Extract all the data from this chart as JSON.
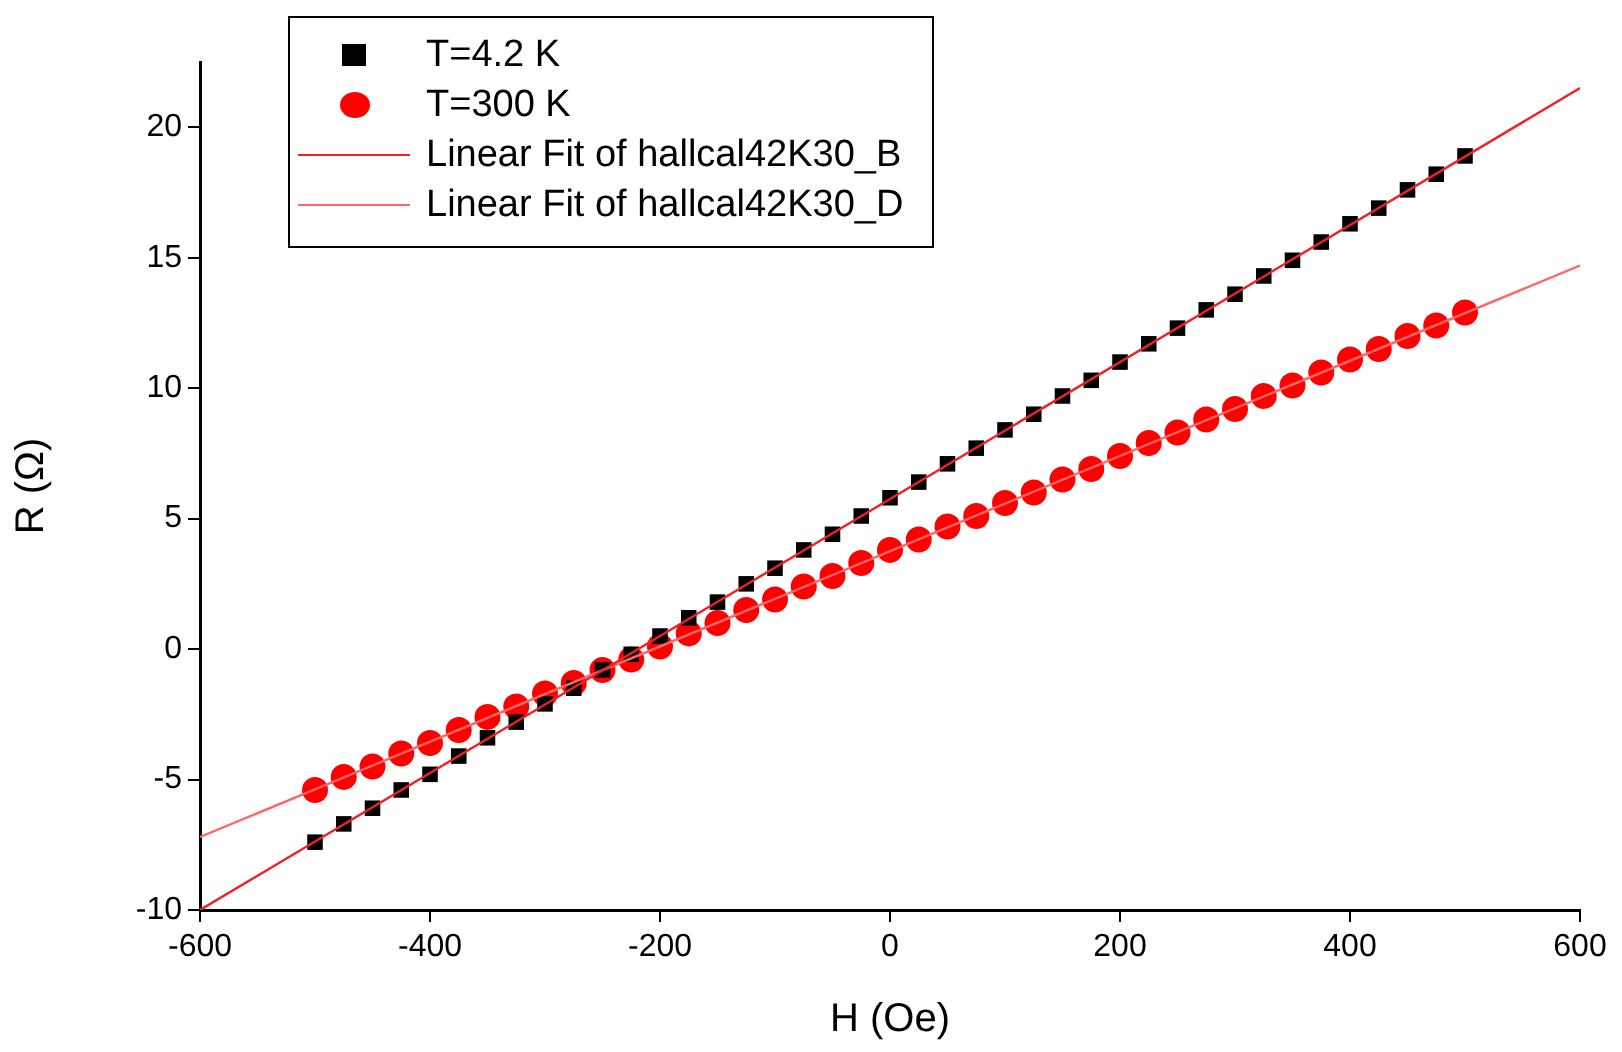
{
  "chart_data": {
    "type": "scatter",
    "xlabel": "H (Oe)",
    "ylabel": "R (Ω)",
    "xlim": [
      -600,
      600
    ],
    "xticks": [
      -600,
      -400,
      -200,
      0,
      200,
      400,
      600
    ],
    "ylim": [
      -10,
      22.5
    ],
    "yticks": [
      -10,
      -5,
      0,
      5,
      10,
      15,
      20
    ],
    "grid": false,
    "legend": "top left",
    "series": [
      {
        "name": "T=4.2 K",
        "marker": "square",
        "color": "#000000",
        "x": [
          -500,
          -475,
          -450,
          -425,
          -400,
          -375,
          -350,
          -325,
          -300,
          -275,
          -250,
          -225,
          -200,
          -175,
          -150,
          -125,
          -100,
          -75,
          -50,
          -25,
          0,
          25,
          50,
          75,
          100,
          125,
          150,
          175,
          200,
          225,
          250,
          275,
          300,
          325,
          350,
          375,
          400,
          425,
          450,
          475,
          500
        ],
        "values": [
          -7.4,
          -6.7,
          -6.1,
          -5.4,
          -4.8,
          -4.1,
          -3.4,
          -2.8,
          -2.1,
          -1.5,
          -0.8,
          -0.2,
          0.5,
          1.2,
          1.8,
          2.5,
          3.1,
          3.8,
          4.4,
          5.1,
          5.8,
          6.4,
          7.1,
          7.7,
          8.4,
          9.0,
          9.7,
          10.3,
          11.0,
          11.7,
          12.3,
          13.0,
          13.6,
          14.3,
          14.9,
          15.6,
          16.3,
          16.9,
          17.6,
          18.2,
          18.9
        ]
      },
      {
        "name": "T=300 K",
        "marker": "circle",
        "color": "#ff0000",
        "x": [
          -500,
          -475,
          -450,
          -425,
          -400,
          -375,
          -350,
          -325,
          -300,
          -275,
          -250,
          -225,
          -200,
          -175,
          -150,
          -125,
          -100,
          -75,
          -50,
          -25,
          0,
          25,
          50,
          75,
          100,
          125,
          150,
          175,
          200,
          225,
          250,
          275,
          300,
          325,
          350,
          375,
          400,
          425,
          450,
          475,
          500
        ],
        "values": [
          -5.4,
          -4.9,
          -4.5,
          -4.0,
          -3.6,
          -3.1,
          -2.6,
          -2.2,
          -1.7,
          -1.3,
          -0.8,
          -0.4,
          0.1,
          0.6,
          1.0,
          1.5,
          1.9,
          2.4,
          2.8,
          3.3,
          3.8,
          4.2,
          4.7,
          5.1,
          5.6,
          6.0,
          6.5,
          6.9,
          7.4,
          7.9,
          8.3,
          8.8,
          9.2,
          9.7,
          10.1,
          10.6,
          11.1,
          11.5,
          12.0,
          12.4,
          12.9
        ]
      },
      {
        "name": "Linear Fit of hallcal42K30_B",
        "type": "line",
        "marker": "none",
        "color": "#ee2222",
        "x": [
          -600,
          600
        ],
        "values": [
          -10,
          21.5
        ]
      },
      {
        "name": "Linear Fit of hallcal42K30_D",
        "type": "line",
        "marker": "none",
        "color": "#ff6666",
        "x": [
          -600,
          600
        ],
        "values": [
          -7.2,
          14.7
        ]
      }
    ]
  }
}
